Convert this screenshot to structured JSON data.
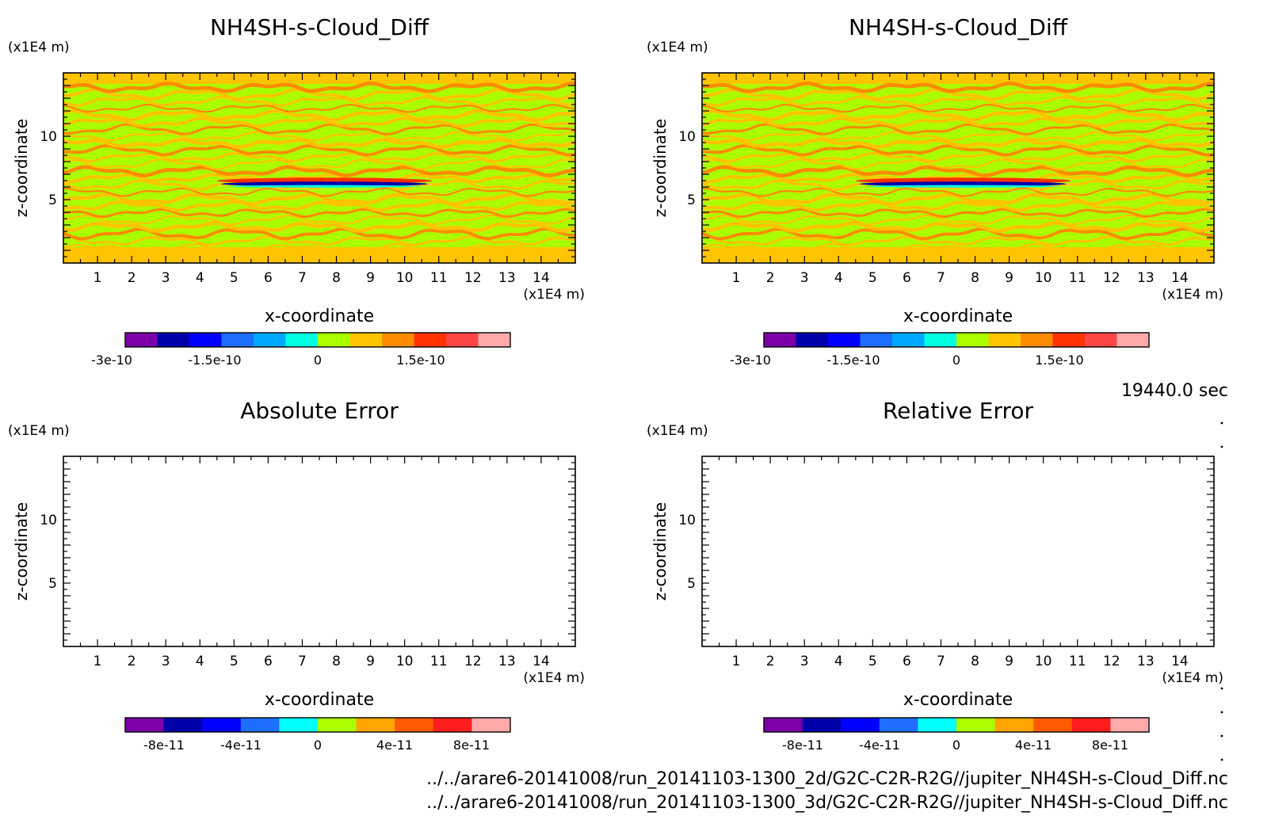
{
  "time_label": "19440.0 sec",
  "files": [
    "../../arare6-20141008/run_20141103-1300_2d/G2C-C2R-R2G//jupiter_NH4SH-s-Cloud_Diff.nc",
    "../../arare6-20141008/run_20141103-1300_3d/G2C-C2R-R2G//jupiter_NH4SH-s-Cloud_Diff.nc"
  ],
  "chart_data": [
    {
      "type": "heatmap",
      "title": "NH4SH-s-Cloud_Diff",
      "xlabel": "x-coordinate",
      "ylabel": "z-coordinate",
      "x_unit": "(x1E4 m)",
      "y_unit": "(x1E4 m)",
      "xlim": [
        0,
        15
      ],
      "ylim": [
        0,
        15
      ],
      "x_ticks": [
        1,
        2,
        3,
        4,
        5,
        6,
        7,
        8,
        9,
        10,
        11,
        12,
        13,
        14
      ],
      "y_ticks": [
        5,
        10
      ],
      "colorbar": {
        "colors": [
          "#7b00a8",
          "#0000aa",
          "#0000ff",
          "#1e6eff",
          "#00a8ff",
          "#00ffe0",
          "#aaff00",
          "#ffc400",
          "#ff8c00",
          "#ff3200",
          "#ff4646",
          "#ffaaaa"
        ],
        "tick_labels": [
          "-3e-10",
          "-1.5e-10",
          "0",
          "1.5e-10"
        ]
      },
      "field": {
        "background": [
          "#aaff00",
          "#ffc400",
          "#ff8c00"
        ],
        "anomaly": {
          "x_range": [
            4.5,
            10.8
          ],
          "z_center": 6.3,
          "colors": [
            "#ff3200",
            "#0000aa",
            "#00ffe0"
          ]
        }
      }
    },
    {
      "type": "heatmap",
      "title": "NH4SH-s-Cloud_Diff",
      "xlabel": "x-coordinate",
      "ylabel": "z-coordinate",
      "x_unit": "(x1E4 m)",
      "y_unit": "(x1E4 m)",
      "xlim": [
        0,
        15
      ],
      "ylim": [
        0,
        15
      ],
      "x_ticks": [
        1,
        2,
        3,
        4,
        5,
        6,
        7,
        8,
        9,
        10,
        11,
        12,
        13,
        14
      ],
      "y_ticks": [
        5,
        10
      ],
      "colorbar": {
        "colors": [
          "#7b00a8",
          "#0000aa",
          "#0000ff",
          "#1e6eff",
          "#00a8ff",
          "#00ffe0",
          "#aaff00",
          "#ffc400",
          "#ff8c00",
          "#ff3200",
          "#ff4646",
          "#ffaaaa"
        ],
        "tick_labels": [
          "-3e-10",
          "-1.5e-10",
          "0",
          "1.5e-10"
        ]
      },
      "field": {
        "background": [
          "#aaff00",
          "#ffc400",
          "#ff8c00"
        ],
        "anomaly": {
          "x_range": [
            4.5,
            10.8
          ],
          "z_center": 6.3,
          "colors": [
            "#ff3200",
            "#0000aa",
            "#00ffe0"
          ]
        }
      }
    },
    {
      "type": "heatmap",
      "title": "Absolute Error",
      "xlabel": "x-coordinate",
      "ylabel": "z-coordinate",
      "x_unit": "(x1E4 m)",
      "y_unit": "(x1E4 m)",
      "xlim": [
        0,
        15
      ],
      "ylim": [
        0,
        15
      ],
      "x_ticks": [
        1,
        2,
        3,
        4,
        5,
        6,
        7,
        8,
        9,
        10,
        11,
        12,
        13,
        14
      ],
      "y_ticks": [
        5,
        10
      ],
      "colorbar": {
        "colors": [
          "#7b00a8",
          "#0000aa",
          "#0000ff",
          "#1e6eff",
          "#00ffff",
          "#aaff00",
          "#ffa500",
          "#ff5a00",
          "#ff1e1e",
          "#ffaaaa"
        ],
        "tick_labels": [
          "-8e-11",
          "-4e-11",
          "0",
          "4e-11",
          "8e-11"
        ]
      },
      "field": null
    },
    {
      "type": "heatmap",
      "title": "Relative Error",
      "xlabel": "x-coordinate",
      "ylabel": "z-coordinate",
      "x_unit": "(x1E4 m)",
      "y_unit": "(x1E4 m)",
      "xlim": [
        0,
        15
      ],
      "ylim": [
        0,
        15
      ],
      "x_ticks": [
        1,
        2,
        3,
        4,
        5,
        6,
        7,
        8,
        9,
        10,
        11,
        12,
        13,
        14
      ],
      "y_ticks": [
        5,
        10
      ],
      "colorbar": {
        "colors": [
          "#7b00a8",
          "#0000aa",
          "#0000ff",
          "#1e6eff",
          "#00ffff",
          "#aaff00",
          "#ffa500",
          "#ff5a00",
          "#ff1e1e",
          "#ffaaaa"
        ],
        "tick_labels": [
          "-8e-11",
          "-4e-11",
          "0",
          "4e-11",
          "8e-11"
        ]
      },
      "field": null
    }
  ]
}
